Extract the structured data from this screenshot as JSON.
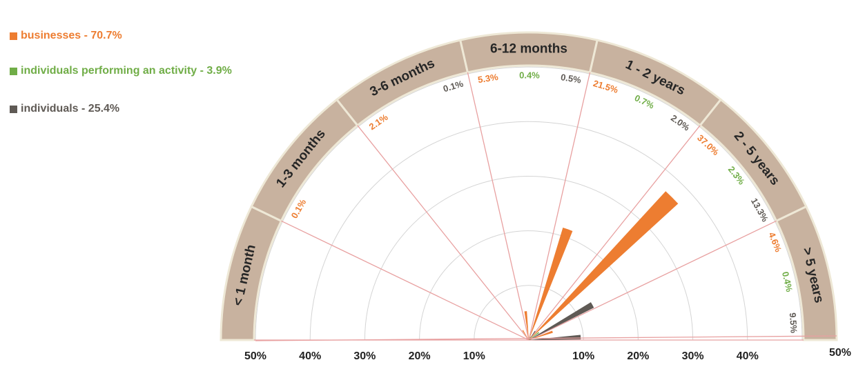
{
  "colors": {
    "businesses": "#ed7d31",
    "individuals_activity": "#70ad47",
    "individuals": "#5f5a55",
    "band": "#c8b29f",
    "band_stroke": "#eee8d6",
    "spoke": "#e8a0a0",
    "grid": "#d4d4d4",
    "axis_text": "#222222"
  },
  "legend": [
    {
      "key": "businesses",
      "label": "businesses - 70.7%",
      "color": "#ed7d31"
    },
    {
      "key": "individuals_activity",
      "label": "individuals performing an activity - 3.9%",
      "color": "#70ad47"
    },
    {
      "key": "individuals",
      "label": "individuals -  25.4%",
      "color": "#5f5a55"
    }
  ],
  "chart_data": {
    "type": "polar-bar",
    "radial_axis": {
      "max": 50,
      "rings": [
        10,
        20,
        30,
        40,
        50
      ],
      "tick_labels_left": [
        "50%",
        "40%",
        "30%",
        "20%",
        "10%"
      ],
      "tick_labels_right": [
        "10%",
        "20%",
        "30%",
        "40%",
        "50%"
      ]
    },
    "categories": [
      "< 1 month",
      "1-3 months",
      "3-6 months",
      "6-12 months",
      "1 - 2 years",
      "2 - 5 years",
      "> 5 years"
    ],
    "series": [
      {
        "name": "businesses",
        "values": [
          0.0,
          0.1,
          2.1,
          5.3,
          21.5,
          37.0,
          4.6
        ],
        "labels": [
          "",
          "0.1%",
          "2.1%",
          "5.3%",
          "21.5%",
          "37.0%",
          "4.6%"
        ]
      },
      {
        "name": "individuals performing an activity",
        "values": [
          0.0,
          0.0,
          0.0,
          0.4,
          0.7,
          2.3,
          0.4
        ],
        "labels": [
          "",
          "",
          "",
          "0.4%",
          "0.7%",
          "2.3%",
          "0.4%"
        ]
      },
      {
        "name": "individuals",
        "values": [
          0.0,
          0.0,
          0.1,
          0.5,
          2.0,
          13.3,
          9.5
        ],
        "labels": [
          "",
          "",
          "0.1%",
          "0.5%",
          "2.0%",
          "13.3%",
          "9.5%"
        ]
      }
    ]
  }
}
